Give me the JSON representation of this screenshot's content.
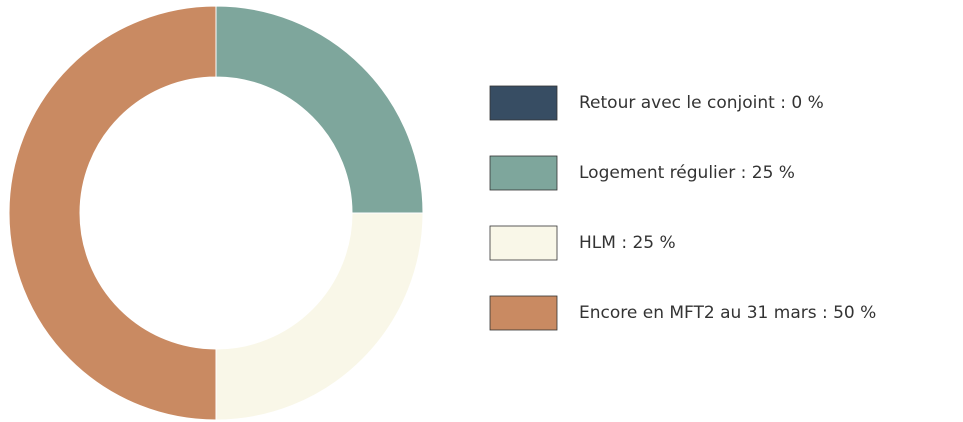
{
  "chart_data": {
    "type": "donut",
    "categories": [
      "Retour avec le conjoint : 0 %",
      "Logement régulier : 25 %",
      "HLM : 25 %",
      "Encore en MFT2 au 31 mars : 50 %"
    ],
    "values": [
      0,
      25,
      25,
      50
    ],
    "colors": [
      "#374d63",
      "#7ea69c",
      "#f9f7e8",
      "#c98a62"
    ],
    "legend": "right"
  }
}
